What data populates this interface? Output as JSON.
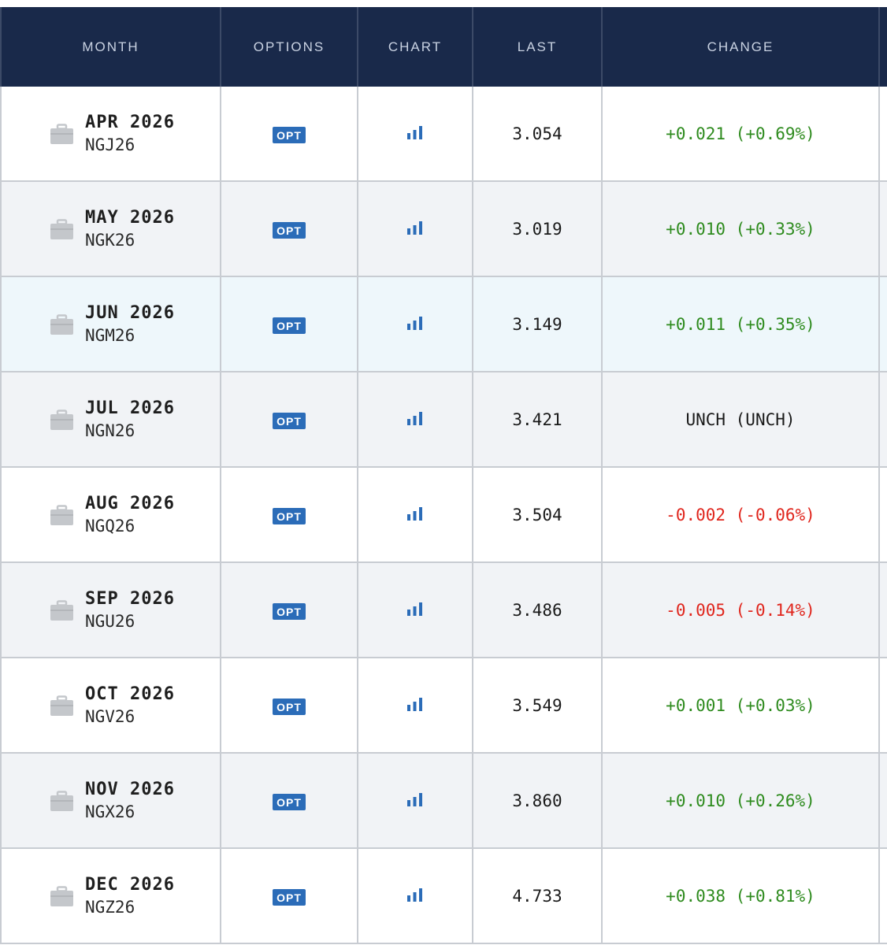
{
  "header": {
    "month": "MONTH",
    "options": "OPTIONS",
    "chart": "CHART",
    "last": "LAST",
    "change": "CHANGE"
  },
  "colors": {
    "header_bg": "#19294a",
    "positive": "#2e8b1e",
    "negative": "#e0261d",
    "opt_badge": "#2b6cb8",
    "highlight_row": "#eef7fb"
  },
  "rows": [
    {
      "month": "APR 2026",
      "symbol": "NGJ26",
      "opt": "OPT",
      "last": "3.054",
      "change": "+0.021 (+0.69%)",
      "direction": "pos"
    },
    {
      "month": "MAY 2026",
      "symbol": "NGK26",
      "opt": "OPT",
      "last": "3.019",
      "change": "+0.010 (+0.33%)",
      "direction": "pos"
    },
    {
      "month": "JUN 2026",
      "symbol": "NGM26",
      "opt": "OPT",
      "last": "3.149",
      "change": "+0.011 (+0.35%)",
      "direction": "pos"
    },
    {
      "month": "JUL 2026",
      "symbol": "NGN26",
      "opt": "OPT",
      "last": "3.421",
      "change": "UNCH (UNCH)",
      "direction": "flat"
    },
    {
      "month": "AUG 2026",
      "symbol": "NGQ26",
      "opt": "OPT",
      "last": "3.504",
      "change": "-0.002 (-0.06%)",
      "direction": "neg"
    },
    {
      "month": "SEP 2026",
      "symbol": "NGU26",
      "opt": "OPT",
      "last": "3.486",
      "change": "-0.005 (-0.14%)",
      "direction": "neg"
    },
    {
      "month": "OCT 2026",
      "symbol": "NGV26",
      "opt": "OPT",
      "last": "3.549",
      "change": "+0.001 (+0.03%)",
      "direction": "pos"
    },
    {
      "month": "NOV 2026",
      "symbol": "NGX26",
      "opt": "OPT",
      "last": "3.860",
      "change": "+0.010 (+0.26%)",
      "direction": "pos"
    },
    {
      "month": "DEC 2026",
      "symbol": "NGZ26",
      "opt": "OPT",
      "last": "4.733",
      "change": "+0.038 (+0.81%)",
      "direction": "pos"
    }
  ],
  "icons": {
    "month": "briefcase-icon",
    "chart": "bar-chart-icon"
  }
}
